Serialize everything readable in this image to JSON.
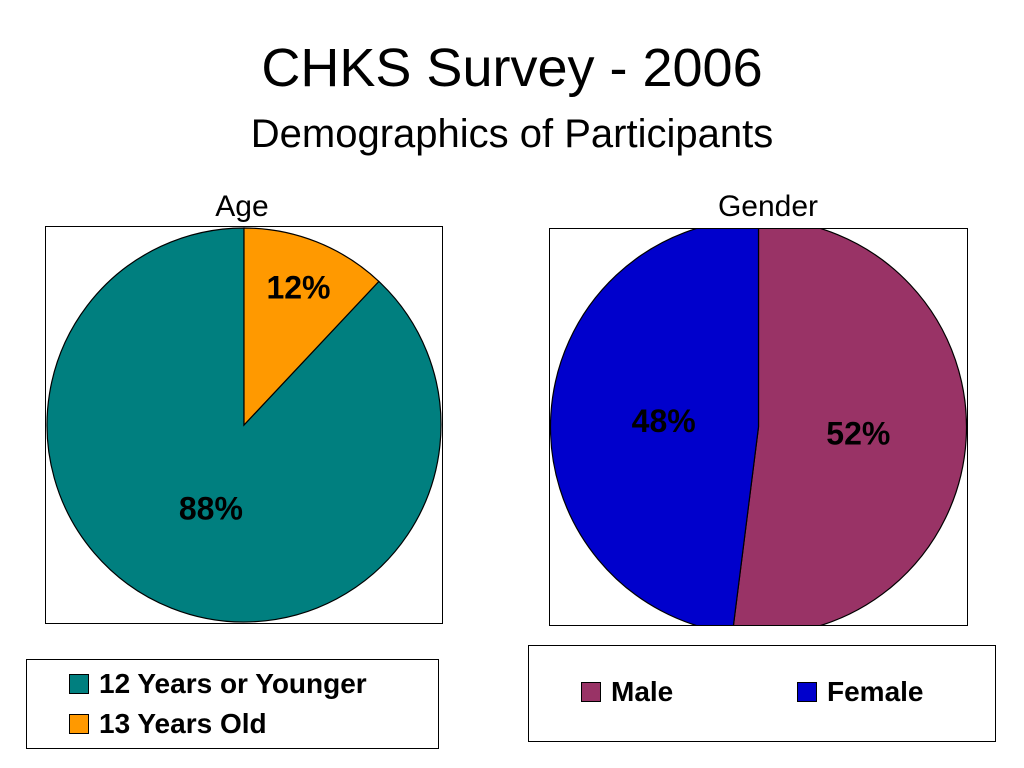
{
  "title": "CHKS Survey - 2006",
  "subtitle": "Demographics of Participants",
  "chart_data": [
    {
      "type": "pie",
      "title": "Age",
      "categories": [
        "12 Years or Younger",
        "13 Years Old"
      ],
      "values": [
        88,
        12
      ],
      "data_labels": [
        "88%",
        "12%"
      ],
      "colors": [
        "#007F7F",
        "#FF9900"
      ],
      "legend_position": "bottom"
    },
    {
      "type": "pie",
      "title": "Gender",
      "categories": [
        "Male",
        "Female"
      ],
      "values": [
        52,
        48
      ],
      "data_labels": [
        "52%",
        "48%"
      ],
      "colors": [
        "#993366",
        "#0000CC"
      ],
      "legend_position": "bottom"
    }
  ]
}
